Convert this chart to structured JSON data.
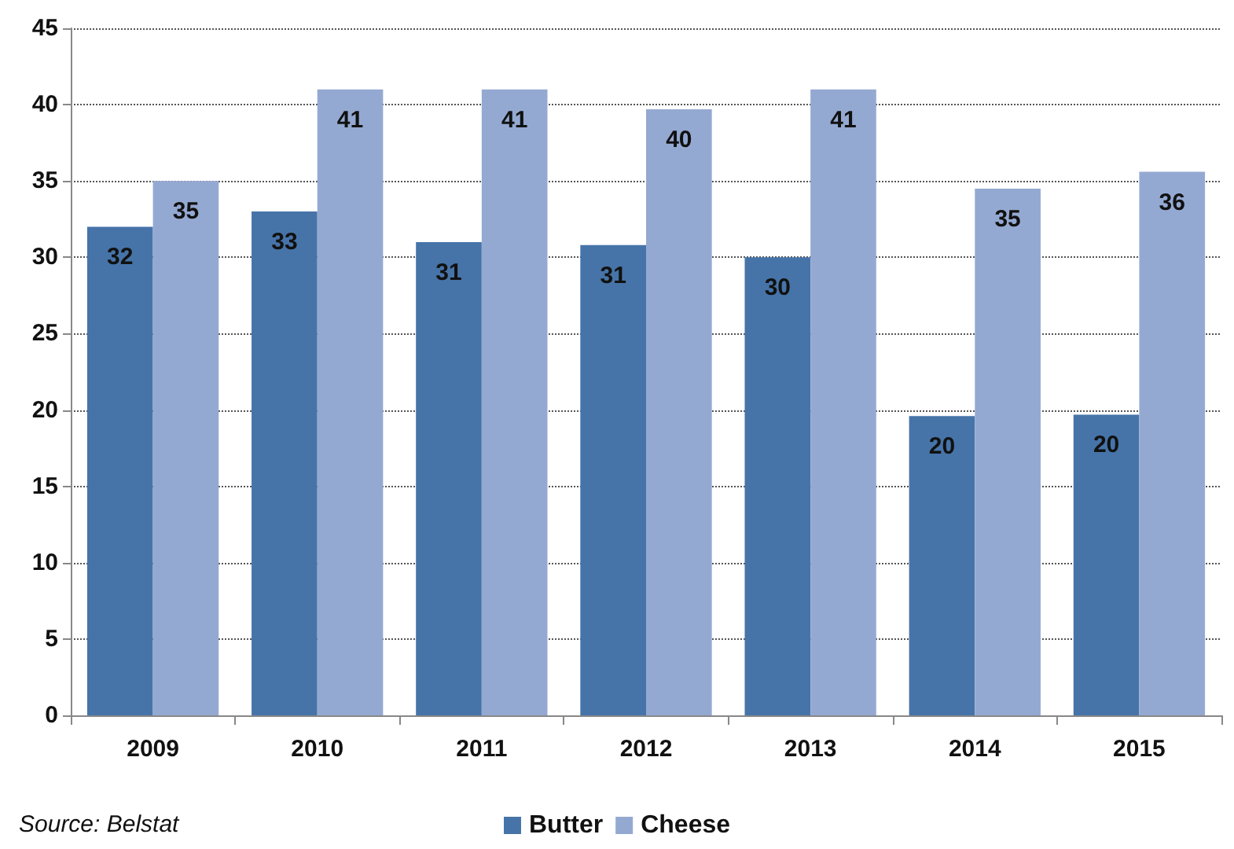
{
  "chart_data": {
    "type": "bar",
    "categories": [
      "2009",
      "2010",
      "2011",
      "2012",
      "2013",
      "2014",
      "2015"
    ],
    "series": [
      {
        "name": "Butter",
        "color": "#4674a8",
        "values": [
          32,
          33,
          31,
          30.8,
          30,
          19.6,
          19.7
        ],
        "value_labels": [
          "32",
          "33",
          "31",
          "31",
          "30",
          "20",
          "20"
        ]
      },
      {
        "name": "Cheese",
        "color": "#94a9d2",
        "values": [
          35,
          41,
          41,
          39.7,
          41,
          34.5,
          35.6
        ],
        "value_labels": [
          "35",
          "41",
          "41",
          "40",
          "41",
          "35",
          "36"
        ]
      }
    ],
    "ylim": [
      0,
      45
    ],
    "yticks": [
      0,
      5,
      10,
      15,
      20,
      25,
      30,
      35,
      40,
      45
    ],
    "grid": "y",
    "legend": "bottom",
    "annotations": [
      "Source: Belstat"
    ]
  }
}
